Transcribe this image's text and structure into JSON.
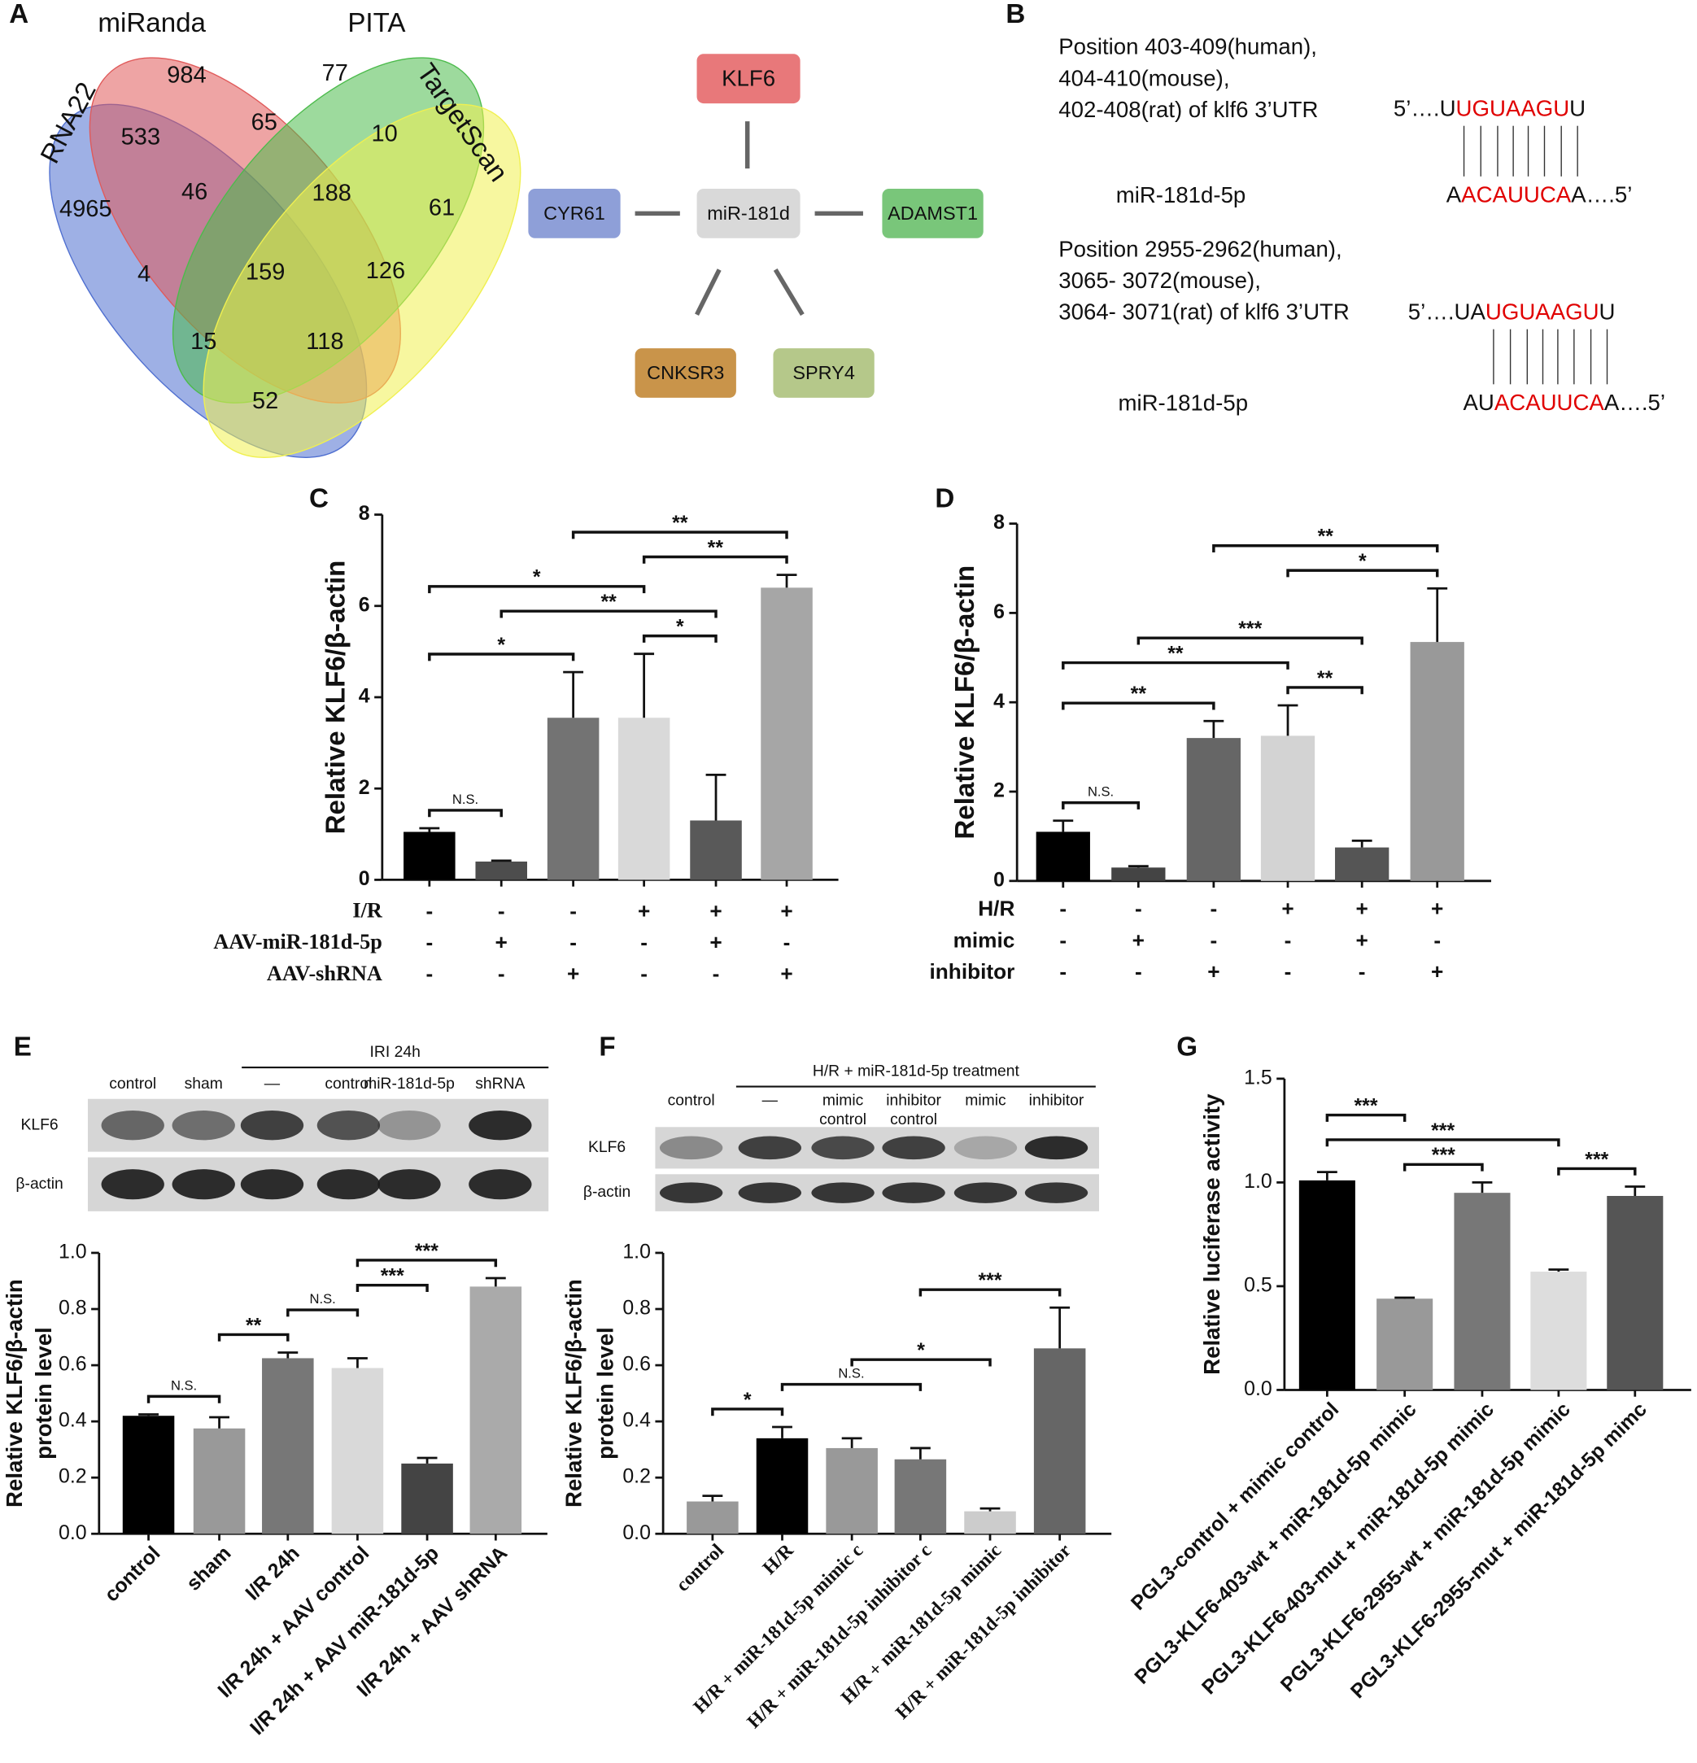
{
  "venn": {
    "panel": "A",
    "sets": [
      {
        "name": "RNA22",
        "color": "#4f6fd0"
      },
      {
        "name": "miRanda",
        "color": "#e05a5a"
      },
      {
        "name": "PITA",
        "color": "#4cbb4c"
      },
      {
        "name": "TargetScan",
        "color": "#f0f050"
      }
    ],
    "counts": [
      984,
      77,
      533,
      65,
      10,
      4965,
      46,
      188,
      61,
      4,
      159,
      126,
      15,
      118,
      52
    ]
  },
  "network": {
    "nodes": [
      {
        "label": "KLF6",
        "color": "#e8787a"
      },
      {
        "label": "miR-181d",
        "color": "#d9d9d9"
      },
      {
        "label": "CYR61",
        "color": "#8e9fd8"
      },
      {
        "label": "ADAMST1",
        "color": "#79c67a"
      },
      {
        "label": "CNKSR3",
        "color": "#c9944a"
      },
      {
        "label": "SPRY4",
        "color": "#b5c88a"
      }
    ]
  },
  "sequences": {
    "panel": "B",
    "items": [
      {
        "position": [
          "Position 403-409(human),",
          "404-410(mouse),",
          "402-408(rat) of klf6 3’UTR"
        ],
        "target": [
          "5’….U",
          "UGUAAGU",
          "U"
        ],
        "mirna_name": "miR-181d-5p",
        "mirna": [
          "A",
          "ACAUUCA",
          "A….5’"
        ]
      },
      {
        "position": [
          "Position 2955-2962(human),",
          "3065- 3072(mouse),",
          "3064- 3071(rat) of klf6 3’UTR"
        ],
        "target": [
          "5’….UA",
          "UGUAAGU",
          "U"
        ],
        "mirna_name": "miR-181d-5p",
        "mirna": [
          "AU",
          "ACAUUCA",
          "A….5’"
        ]
      }
    ]
  },
  "blots": [
    {
      "group": "IRI 24h",
      "lanes": [
        [
          "control"
        ],
        [
          "sham"
        ],
        [
          "—"
        ],
        [
          "control"
        ],
        [
          "miR-181d-5p"
        ],
        [
          "shRNA"
        ]
      ],
      "rows": [
        "KLF6",
        "β-actin"
      ]
    },
    {
      "group": "H/R + miR-181d-5p treatment",
      "lanes": [
        [
          "control"
        ],
        [
          "—"
        ],
        [
          "mimic",
          "control"
        ],
        [
          "inhibitor",
          "control"
        ],
        [
          "mimic"
        ],
        [
          "inhibitor"
        ]
      ],
      "rows": [
        "KLF6",
        "β-actin"
      ]
    }
  ],
  "chart_data": [
    {
      "type": "bar",
      "panel": "C",
      "ylabel": "Relative  KLF6/β-actin",
      "values": [
        1.05,
        0.4,
        3.55,
        3.55,
        1.3,
        6.4
      ],
      "errors": [
        0.08,
        0.02,
        1.0,
        1.4,
        1.0,
        0.28
      ],
      "colors": [
        "#000000",
        "#4d4d4d",
        "#737373",
        "#d9d9d9",
        "#595959",
        "#a6a6a6"
      ],
      "ylim": [
        0,
        8
      ],
      "yticks": [
        0,
        2,
        4,
        6,
        8
      ],
      "conditions": [
        {
          "name": "I/R",
          "values": [
            "-",
            "-",
            "-",
            "+",
            "+",
            "+"
          ]
        },
        {
          "name": "AAV-miR-181d-5p",
          "values": [
            "-",
            "+",
            "-",
            "-",
            "+",
            "-"
          ]
        },
        {
          "name": "AAV-shRNA",
          "values": [
            "-",
            "-",
            "+",
            "-",
            "-",
            "+"
          ]
        }
      ],
      "comparisons": [
        {
          "from": 0,
          "to": 1,
          "label": "N.S."
        },
        {
          "from": 0,
          "to": 2,
          "label": "*"
        },
        {
          "from": 3,
          "to": 4,
          "label": "*"
        },
        {
          "from": 1,
          "to": 4,
          "label": "**"
        },
        {
          "from": 0,
          "to": 3,
          "label": "*"
        },
        {
          "from": 3,
          "to": 5,
          "label": "**"
        },
        {
          "from": 2,
          "to": 5,
          "label": "**"
        }
      ]
    },
    {
      "type": "bar",
      "panel": "D",
      "ylabel": "Relative KLF6/β-actin",
      "values": [
        1.1,
        0.3,
        3.2,
        3.25,
        0.75,
        5.35
      ],
      "errors": [
        0.25,
        0.03,
        0.38,
        0.68,
        0.15,
        1.2
      ],
      "colors": [
        "#000000",
        "#444444",
        "#666666",
        "#d3d3d3",
        "#555555",
        "#999999"
      ],
      "ylim": [
        0,
        8
      ],
      "yticks": [
        0,
        2,
        4,
        6,
        8
      ],
      "conditions": [
        {
          "name": "H/R",
          "values": [
            "-",
            "-",
            "-",
            "+",
            "+",
            "+"
          ]
        },
        {
          "name": "mimic",
          "values": [
            "-",
            "+",
            "-",
            "-",
            "+",
            "-"
          ]
        },
        {
          "name": "inhibitor",
          "values": [
            "-",
            "-",
            "+",
            "-",
            "-",
            "+"
          ]
        }
      ],
      "comparisons": [
        {
          "from": 0,
          "to": 1,
          "label": "N.S."
        },
        {
          "from": 0,
          "to": 2,
          "label": "**"
        },
        {
          "from": 3,
          "to": 4,
          "label": "**"
        },
        {
          "from": 0,
          "to": 3,
          "label": "**"
        },
        {
          "from": 1,
          "to": 4,
          "label": "***"
        },
        {
          "from": 3,
          "to": 5,
          "label": "*"
        },
        {
          "from": 2,
          "to": 5,
          "label": "**"
        }
      ]
    },
    {
      "type": "bar",
      "panel": "E",
      "ylabel": [
        "Relative  KLF6/β-actin",
        "protein level"
      ],
      "categories": [
        "control",
        "sham",
        "I/R 24h",
        "I/R 24h + AAV control",
        "I/R 24h + AAV miR-181d-5p",
        "I/R 24h + AAV shRNA"
      ],
      "values": [
        0.42,
        0.375,
        0.625,
        0.59,
        0.25,
        0.88
      ],
      "errors": [
        0.005,
        0.04,
        0.02,
        0.035,
        0.02,
        0.03
      ],
      "colors": [
        "#000000",
        "#999999",
        "#777777",
        "#d9d9d9",
        "#444444",
        "#aaaaaa"
      ],
      "ylim": [
        0,
        1
      ],
      "yticks": [
        {
          "value": 0,
          "label": "0.0"
        },
        0.2,
        0.4,
        0.6,
        0.8,
        {
          "value": 1,
          "label": "1.0"
        }
      ],
      "comparisons": [
        {
          "from": 0,
          "to": 1,
          "label": "N.S."
        },
        {
          "from": 1,
          "to": 2,
          "label": "**"
        },
        {
          "from": 2,
          "to": 3,
          "label": "N.S."
        },
        {
          "from": 3,
          "to": 4,
          "label": "***"
        },
        {
          "from": 3,
          "to": 5,
          "label": "***"
        }
      ]
    },
    {
      "type": "bar",
      "panel": "F",
      "ylabel": [
        "Relative KLF6/β-actin",
        "protein level"
      ],
      "categories": [
        "control",
        "H/R",
        "H/R + miR-181d-5p mimic c",
        "H/R + miR-181d-5p inhibitor c",
        "H/R + miR-181d-5p mimic",
        "H/R + miR-181d-5p inhibitor"
      ],
      "values": [
        0.115,
        0.34,
        0.305,
        0.265,
        0.08,
        0.66
      ],
      "errors": [
        0.02,
        0.04,
        0.035,
        0.04,
        0.01,
        0.145
      ],
      "colors": [
        "#999999",
        "#000000",
        "#999999",
        "#777777",
        "#cccccc",
        "#666666"
      ],
      "ylim": [
        0,
        1
      ],
      "yticks": [
        {
          "value": 0,
          "label": "0.0"
        },
        0.2,
        0.4,
        0.6,
        0.8,
        {
          "value": 1,
          "label": "1.0"
        }
      ],
      "comparisons": [
        {
          "from": 0,
          "to": 1,
          "label": "*"
        },
        {
          "from": 1,
          "to": 3,
          "label": "N.S."
        },
        {
          "from": 2,
          "to": 4,
          "label": "*"
        },
        {
          "from": 3,
          "to": 5,
          "label": "***"
        }
      ]
    },
    {
      "type": "bar",
      "panel": "G",
      "ylabel": "Relative luciferase activity",
      "categories": [
        "PGL3-control + mimic control",
        "PGL3-KLF6-403-wt + miR-181d-5p mimic",
        "PGL3-KLF6-403-mut + miR-181d-5p mimic",
        "PGL3-KLF6-2955-wt + miR-181d-5p mimic",
        "PGL3-KLF6-2955-mut + miR-181d-5p mimc"
      ],
      "values": [
        1.01,
        0.44,
        0.95,
        0.57,
        0.935
      ],
      "errors": [
        0.04,
        0.005,
        0.05,
        0.01,
        0.045
      ],
      "colors": [
        "#000000",
        "#999999",
        "#777777",
        "#dddddd",
        "#555555"
      ],
      "ylim": [
        0,
        1.5
      ],
      "yticks": [
        {
          "value": 0,
          "label": "0.0"
        },
        0.5,
        {
          "value": 1,
          "label": "1.0"
        },
        1.5
      ],
      "comparisons": [
        {
          "from": 1,
          "to": 2,
          "label": "***"
        },
        {
          "from": 3,
          "to": 4,
          "label": "***"
        },
        {
          "from": 0,
          "to": 3,
          "label": "***"
        },
        {
          "from": 0,
          "to": 1,
          "label": "***"
        }
      ]
    }
  ]
}
